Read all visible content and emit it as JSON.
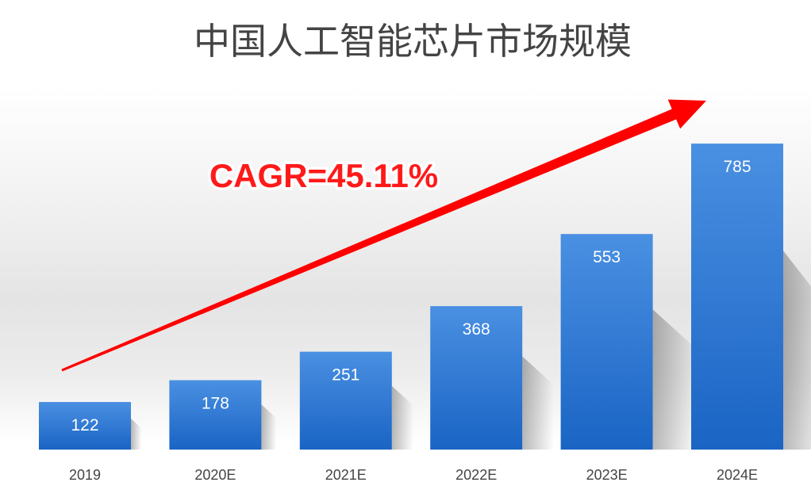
{
  "chart_data": {
    "type": "bar",
    "title": "中国人工智能芯片市场规模",
    "categories": [
      "2019",
      "2020E",
      "2021E",
      "2022E",
      "2023E",
      "2024E"
    ],
    "values": [
      122,
      178,
      251,
      368,
      553,
      785
    ],
    "data_labels": [
      "122",
      "178",
      "251",
      "368",
      "553",
      "785"
    ],
    "ylim": [
      0,
      850
    ],
    "grid": false,
    "legend": "none",
    "annotations": [
      "CAGR=45.11%"
    ],
    "colors": {
      "bar_top": "#4a90e2",
      "bar_bottom": "#1a64c4",
      "arrow": "#ff0000",
      "annotation": "#ff1a1a"
    }
  }
}
